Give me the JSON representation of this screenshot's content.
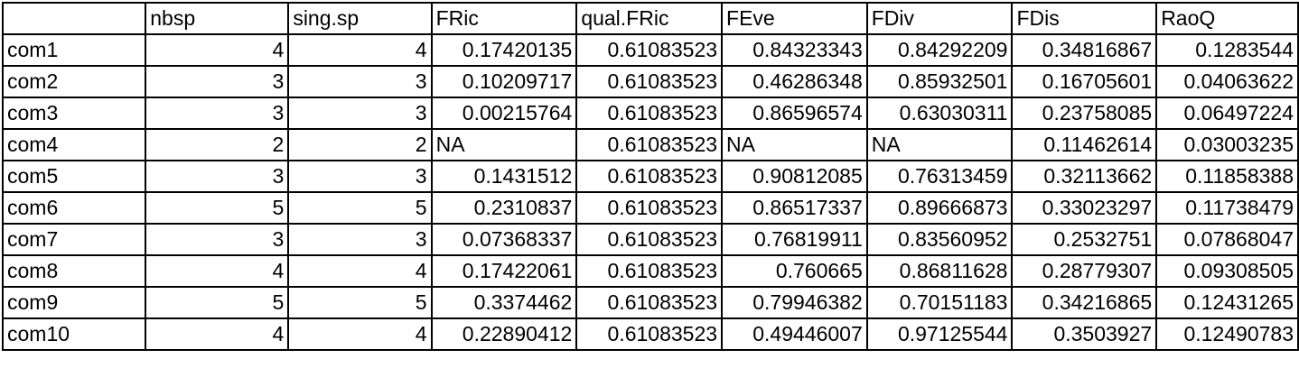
{
  "table": {
    "columns": [
      "",
      "nbsp",
      "sing.sp",
      "FRic",
      "qual.FRic",
      "FEve",
      "FDiv",
      "FDis",
      "RaoQ"
    ],
    "rows": [
      {
        "label": "com1",
        "values": [
          "4",
          "4",
          "0.17420135",
          "0.61083523",
          "0.84323343",
          "0.84292209",
          "0.34816867",
          "0.1283544"
        ]
      },
      {
        "label": "com2",
        "values": [
          "3",
          "3",
          "0.10209717",
          "0.61083523",
          "0.46286348",
          "0.85932501",
          "0.16705601",
          "0.04063622"
        ]
      },
      {
        "label": "com3",
        "values": [
          "3",
          "3",
          "0.00215764",
          "0.61083523",
          "0.86596574",
          "0.63030311",
          "0.23758085",
          "0.06497224"
        ]
      },
      {
        "label": "com4",
        "values": [
          "2",
          "2",
          "NA",
          "0.61083523",
          "NA",
          "NA",
          "0.11462614",
          "0.03003235"
        ]
      },
      {
        "label": "com5",
        "values": [
          "3",
          "3",
          "0.1431512",
          "0.61083523",
          "0.90812085",
          "0.76313459",
          "0.32113662",
          "0.11858388"
        ]
      },
      {
        "label": "com6",
        "values": [
          "5",
          "5",
          "0.2310837",
          "0.61083523",
          "0.86517337",
          "0.89666873",
          "0.33023297",
          "0.11738479"
        ]
      },
      {
        "label": "com7",
        "values": [
          "3",
          "3",
          "0.07368337",
          "0.61083523",
          "0.76819911",
          "0.83560952",
          "0.2532751",
          "0.07868047"
        ]
      },
      {
        "label": "com8",
        "values": [
          "4",
          "4",
          "0.17422061",
          "0.61083523",
          "0.760665",
          "0.86811628",
          "0.28779307",
          "0.09308505"
        ]
      },
      {
        "label": "com9",
        "values": [
          "5",
          "5",
          "0.3374462",
          "0.61083523",
          "0.79946382",
          "0.70151183",
          "0.34216865",
          "0.12431265"
        ]
      },
      {
        "label": "com10",
        "values": [
          "4",
          "4",
          "0.22890412",
          "0.61083523",
          "0.49446007",
          "0.97125544",
          "0.3503927",
          "0.12490783"
        ]
      }
    ]
  }
}
